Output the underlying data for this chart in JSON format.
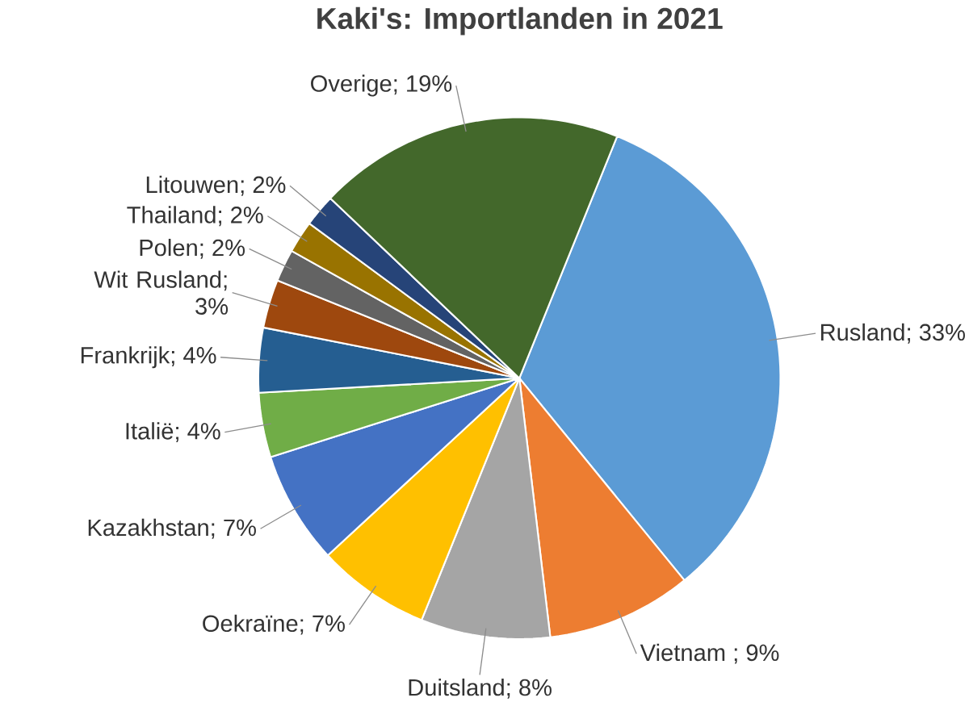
{
  "chart_data": {
    "type": "pie",
    "title": "Kaki's: Importlanden in 2021",
    "categories": [
      "Rusland",
      "Vietnam ",
      "Duitsland",
      "Oekraïne",
      "Kazakhstan",
      "Italië",
      "Frankrijk",
      "Wit Rusland",
      "Polen",
      "Thailand",
      "Litouwen",
      "Overige"
    ],
    "values": [
      33,
      9,
      8,
      7,
      7,
      4,
      4,
      3,
      2,
      2,
      2,
      19
    ],
    "colors": [
      "#5b9bd5",
      "#ed7d31",
      "#a5a5a5",
      "#ffc000",
      "#4472c4",
      "#70ad47",
      "#255e91",
      "#9e480e",
      "#636363",
      "#997300",
      "#264478",
      "#43682b"
    ],
    "value_labels": [
      "; 33%",
      "; 9%",
      "; 8%",
      "; 7%",
      "; 7%",
      "; 4%",
      "; 4%",
      "; 3%",
      "; 2%",
      "; 2%",
      "; 2%",
      "; 19%"
    ]
  }
}
